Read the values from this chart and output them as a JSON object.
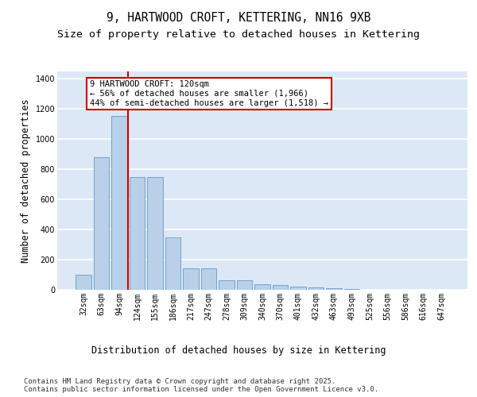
{
  "title": "9, HARTWOOD CROFT, KETTERING, NN16 9XB",
  "subtitle": "Size of property relative to detached houses in Kettering",
  "xlabel": "Distribution of detached houses by size in Kettering",
  "ylabel": "Number of detached properties",
  "categories": [
    "32sqm",
    "63sqm",
    "94sqm",
    "124sqm",
    "155sqm",
    "186sqm",
    "217sqm",
    "247sqm",
    "278sqm",
    "309sqm",
    "340sqm",
    "370sqm",
    "401sqm",
    "432sqm",
    "463sqm",
    "493sqm",
    "525sqm",
    "556sqm",
    "586sqm",
    "616sqm",
    "647sqm"
  ],
  "values": [
    100,
    880,
    1155,
    750,
    750,
    350,
    140,
    140,
    65,
    65,
    35,
    30,
    20,
    15,
    10,
    5,
    2,
    1,
    1,
    0,
    0
  ],
  "bar_color": "#b8d0e8",
  "bar_edge_color": "#6699cc",
  "vline_color": "#cc0000",
  "annotation_text": "9 HARTWOOD CROFT: 120sqm\n← 56% of detached houses are smaller (1,966)\n44% of semi-detached houses are larger (1,518) →",
  "annotation_box_color": "#ffffff",
  "annotation_box_edge": "#cc0000",
  "ylim": [
    0,
    1450
  ],
  "yticks": [
    0,
    200,
    400,
    600,
    800,
    1000,
    1200,
    1400
  ],
  "background_color": "#dce8f5",
  "grid_color": "#ffffff",
  "footer": "Contains HM Land Registry data © Crown copyright and database right 2025.\nContains public sector information licensed under the Open Government Licence v3.0.",
  "title_fontsize": 10.5,
  "subtitle_fontsize": 9.5,
  "label_fontsize": 8.5,
  "tick_fontsize": 7,
  "footer_fontsize": 6.5,
  "annotation_fontsize": 7.5
}
